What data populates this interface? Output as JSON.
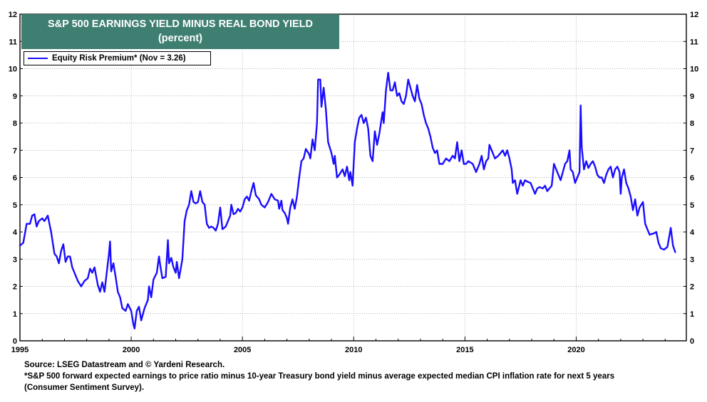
{
  "chart_data": {
    "type": "line",
    "title": "S&P 500 EARNINGS YIELD MINUS REAL BOND YIELD",
    "subtitle": "(percent)",
    "xlabel": "",
    "ylabel": "",
    "xlim": [
      1995.0,
      2024.95
    ],
    "ylim": [
      0,
      12
    ],
    "x_ticks": [
      "1995",
      "2000",
      "2005",
      "2010",
      "2015",
      "2020"
    ],
    "y_ticks": [
      "0",
      "1",
      "2",
      "3",
      "4",
      "5",
      "6",
      "7",
      "8",
      "9",
      "10",
      "11",
      "12"
    ],
    "grid": true,
    "legend_position": "top-left",
    "series": [
      {
        "name": "Equity Risk Premium* (Nov = 3.26)",
        "color": "#1a0dff",
        "points": [
          [
            1995.0,
            3.5
          ],
          [
            1995.15,
            3.6
          ],
          [
            1995.3,
            4.3
          ],
          [
            1995.45,
            4.3
          ],
          [
            1995.55,
            4.6
          ],
          [
            1995.65,
            4.65
          ],
          [
            1995.75,
            4.2
          ],
          [
            1995.85,
            4.4
          ],
          [
            1996.0,
            4.5
          ],
          [
            1996.1,
            4.4
          ],
          [
            1996.25,
            4.6
          ],
          [
            1996.4,
            4.0
          ],
          [
            1996.55,
            3.2
          ],
          [
            1996.65,
            3.1
          ],
          [
            1996.75,
            2.85
          ],
          [
            1996.85,
            3.3
          ],
          [
            1996.95,
            3.55
          ],
          [
            1997.05,
            2.9
          ],
          [
            1997.15,
            3.1
          ],
          [
            1997.25,
            3.1
          ],
          [
            1997.35,
            2.7
          ],
          [
            1997.5,
            2.4
          ],
          [
            1997.6,
            2.2
          ],
          [
            1997.75,
            2.0
          ],
          [
            1997.9,
            2.2
          ],
          [
            1998.05,
            2.3
          ],
          [
            1998.15,
            2.65
          ],
          [
            1998.25,
            2.5
          ],
          [
            1998.35,
            2.7
          ],
          [
            1998.5,
            2.05
          ],
          [
            1998.6,
            1.8
          ],
          [
            1998.7,
            2.15
          ],
          [
            1998.8,
            1.8
          ],
          [
            1998.9,
            2.5
          ],
          [
            1999.0,
            3.2
          ],
          [
            1999.05,
            3.65
          ],
          [
            1999.1,
            2.55
          ],
          [
            1999.2,
            2.85
          ],
          [
            1999.3,
            2.35
          ],
          [
            1999.4,
            1.8
          ],
          [
            1999.5,
            1.6
          ],
          [
            1999.6,
            1.2
          ],
          [
            1999.75,
            1.1
          ],
          [
            1999.85,
            1.35
          ],
          [
            2000.0,
            1.1
          ],
          [
            2000.1,
            0.6
          ],
          [
            2000.15,
            0.45
          ],
          [
            2000.25,
            1.1
          ],
          [
            2000.35,
            1.25
          ],
          [
            2000.45,
            0.75
          ],
          [
            2000.6,
            1.2
          ],
          [
            2000.75,
            1.5
          ],
          [
            2000.8,
            2.0
          ],
          [
            2000.9,
            1.6
          ],
          [
            2001.0,
            2.25
          ],
          [
            2001.15,
            2.5
          ],
          [
            2001.25,
            3.1
          ],
          [
            2001.3,
            2.8
          ],
          [
            2001.4,
            2.3
          ],
          [
            2001.55,
            2.35
          ],
          [
            2001.6,
            3.0
          ],
          [
            2001.65,
            3.7
          ],
          [
            2001.7,
            2.85
          ],
          [
            2001.8,
            3.05
          ],
          [
            2001.9,
            2.7
          ],
          [
            2002.0,
            2.5
          ],
          [
            2002.05,
            2.9
          ],
          [
            2002.15,
            2.3
          ],
          [
            2002.3,
            3.0
          ],
          [
            2002.4,
            4.4
          ],
          [
            2002.5,
            4.8
          ],
          [
            2002.6,
            5.0
          ],
          [
            2002.7,
            5.5
          ],
          [
            2002.8,
            5.1
          ],
          [
            2002.9,
            5.05
          ],
          [
            2003.0,
            5.1
          ],
          [
            2003.1,
            5.5
          ],
          [
            2003.2,
            5.1
          ],
          [
            2003.3,
            5.0
          ],
          [
            2003.4,
            4.3
          ],
          [
            2003.5,
            4.15
          ],
          [
            2003.6,
            4.2
          ],
          [
            2003.7,
            4.15
          ],
          [
            2003.8,
            4.05
          ],
          [
            2003.9,
            4.3
          ],
          [
            2004.0,
            4.9
          ],
          [
            2004.1,
            4.1
          ],
          [
            2004.25,
            4.2
          ],
          [
            2004.35,
            4.4
          ],
          [
            2004.45,
            4.6
          ],
          [
            2004.5,
            5.0
          ],
          [
            2004.6,
            4.65
          ],
          [
            2004.7,
            4.7
          ],
          [
            2004.8,
            4.85
          ],
          [
            2004.9,
            4.75
          ],
          [
            2005.0,
            4.9
          ],
          [
            2005.1,
            5.2
          ],
          [
            2005.2,
            5.3
          ],
          [
            2005.3,
            5.15
          ],
          [
            2005.4,
            5.5
          ],
          [
            2005.5,
            5.8
          ],
          [
            2005.6,
            5.35
          ],
          [
            2005.75,
            5.2
          ],
          [
            2005.85,
            5.0
          ],
          [
            2006.0,
            4.9
          ],
          [
            2006.15,
            5.1
          ],
          [
            2006.3,
            5.4
          ],
          [
            2006.45,
            5.2
          ],
          [
            2006.6,
            5.15
          ],
          [
            2006.65,
            4.85
          ],
          [
            2006.75,
            5.15
          ],
          [
            2006.8,
            4.8
          ],
          [
            2006.9,
            4.7
          ],
          [
            2007.0,
            4.5
          ],
          [
            2007.05,
            4.3
          ],
          [
            2007.15,
            4.9
          ],
          [
            2007.25,
            5.2
          ],
          [
            2007.35,
            4.85
          ],
          [
            2007.45,
            5.3
          ],
          [
            2007.55,
            6.0
          ],
          [
            2007.65,
            6.6
          ],
          [
            2007.75,
            6.7
          ],
          [
            2007.85,
            7.05
          ],
          [
            2008.0,
            6.85
          ],
          [
            2008.05,
            6.7
          ],
          [
            2008.15,
            7.4
          ],
          [
            2008.25,
            7.0
          ],
          [
            2008.35,
            8.0
          ],
          [
            2008.4,
            9.6
          ],
          [
            2008.5,
            9.6
          ],
          [
            2008.55,
            8.6
          ],
          [
            2008.65,
            9.3
          ],
          [
            2008.75,
            8.5
          ],
          [
            2008.85,
            7.3
          ],
          [
            2009.0,
            6.9
          ],
          [
            2009.1,
            6.5
          ],
          [
            2009.15,
            6.8
          ],
          [
            2009.25,
            6.0
          ],
          [
            2009.35,
            6.1
          ],
          [
            2009.5,
            6.3
          ],
          [
            2009.6,
            6.05
          ],
          [
            2009.7,
            6.4
          ],
          [
            2009.8,
            5.9
          ],
          [
            2009.85,
            6.2
          ],
          [
            2009.95,
            5.7
          ],
          [
            2010.05,
            7.3
          ],
          [
            2010.15,
            7.8
          ],
          [
            2010.25,
            8.2
          ],
          [
            2010.35,
            8.3
          ],
          [
            2010.45,
            8.0
          ],
          [
            2010.55,
            8.2
          ],
          [
            2010.65,
            7.8
          ],
          [
            2010.75,
            6.8
          ],
          [
            2010.85,
            6.6
          ],
          [
            2010.95,
            7.7
          ],
          [
            2011.05,
            7.2
          ],
          [
            2011.15,
            7.6
          ],
          [
            2011.3,
            8.4
          ],
          [
            2011.35,
            8.0
          ],
          [
            2011.45,
            9.2
          ],
          [
            2011.55,
            9.85
          ],
          [
            2011.65,
            9.2
          ],
          [
            2011.75,
            9.2
          ],
          [
            2011.85,
            9.5
          ],
          [
            2011.95,
            9.0
          ],
          [
            2012.05,
            9.1
          ],
          [
            2012.15,
            8.8
          ],
          [
            2012.25,
            8.7
          ],
          [
            2012.35,
            9.0
          ],
          [
            2012.45,
            9.6
          ],
          [
            2012.55,
            9.3
          ],
          [
            2012.65,
            9.0
          ],
          [
            2012.75,
            8.8
          ],
          [
            2012.85,
            9.4
          ],
          [
            2012.95,
            8.9
          ],
          [
            2013.05,
            8.7
          ],
          [
            2013.15,
            8.3
          ],
          [
            2013.25,
            8.0
          ],
          [
            2013.35,
            7.8
          ],
          [
            2013.45,
            7.5
          ],
          [
            2013.55,
            7.1
          ],
          [
            2013.65,
            6.9
          ],
          [
            2013.75,
            7.0
          ],
          [
            2013.85,
            6.5
          ],
          [
            2014.0,
            6.5
          ],
          [
            2014.15,
            6.7
          ],
          [
            2014.3,
            6.6
          ],
          [
            2014.45,
            6.8
          ],
          [
            2014.55,
            6.7
          ],
          [
            2014.65,
            7.3
          ],
          [
            2014.75,
            6.6
          ],
          [
            2014.85,
            7.0
          ],
          [
            2014.95,
            6.5
          ],
          [
            2015.05,
            6.5
          ],
          [
            2015.15,
            6.6
          ],
          [
            2015.35,
            6.5
          ],
          [
            2015.5,
            6.2
          ],
          [
            2015.65,
            6.5
          ],
          [
            2015.75,
            6.8
          ],
          [
            2015.85,
            6.3
          ],
          [
            2015.95,
            6.6
          ],
          [
            2016.05,
            6.7
          ],
          [
            2016.1,
            7.2
          ],
          [
            2016.25,
            6.9
          ],
          [
            2016.35,
            6.7
          ],
          [
            2016.5,
            6.8
          ],
          [
            2016.6,
            6.9
          ],
          [
            2016.7,
            7.0
          ],
          [
            2016.8,
            6.8
          ],
          [
            2016.9,
            7.0
          ],
          [
            2017.0,
            6.7
          ],
          [
            2017.1,
            6.3
          ],
          [
            2017.15,
            5.8
          ],
          [
            2017.25,
            5.9
          ],
          [
            2017.35,
            5.4
          ],
          [
            2017.5,
            5.9
          ],
          [
            2017.6,
            5.7
          ],
          [
            2017.7,
            5.9
          ],
          [
            2017.8,
            5.85
          ],
          [
            2017.95,
            5.8
          ],
          [
            2018.05,
            5.6
          ],
          [
            2018.15,
            5.4
          ],
          [
            2018.25,
            5.6
          ],
          [
            2018.35,
            5.65
          ],
          [
            2018.5,
            5.6
          ],
          [
            2018.6,
            5.7
          ],
          [
            2018.7,
            5.5
          ],
          [
            2018.8,
            5.6
          ],
          [
            2018.9,
            5.7
          ],
          [
            2019.0,
            6.5
          ],
          [
            2019.1,
            6.3
          ],
          [
            2019.2,
            6.1
          ],
          [
            2019.3,
            5.9
          ],
          [
            2019.4,
            6.2
          ],
          [
            2019.5,
            6.5
          ],
          [
            2019.6,
            6.6
          ],
          [
            2019.7,
            7.0
          ],
          [
            2019.75,
            6.3
          ],
          [
            2019.85,
            6.2
          ],
          [
            2019.95,
            5.8
          ],
          [
            2020.05,
            6.0
          ],
          [
            2020.15,
            6.2
          ],
          [
            2020.2,
            8.65
          ],
          [
            2020.25,
            7.1
          ],
          [
            2020.35,
            6.3
          ],
          [
            2020.45,
            6.6
          ],
          [
            2020.55,
            6.35
          ],
          [
            2020.65,
            6.5
          ],
          [
            2020.75,
            6.6
          ],
          [
            2020.85,
            6.4
          ],
          [
            2020.95,
            6.1
          ],
          [
            2021.05,
            6.0
          ],
          [
            2021.15,
            6.0
          ],
          [
            2021.25,
            5.8
          ],
          [
            2021.35,
            6.1
          ],
          [
            2021.45,
            6.3
          ],
          [
            2021.55,
            6.4
          ],
          [
            2021.65,
            6.0
          ],
          [
            2021.75,
            6.3
          ],
          [
            2021.85,
            6.4
          ],
          [
            2021.95,
            6.2
          ],
          [
            2022.0,
            5.4
          ],
          [
            2022.05,
            6.0
          ],
          [
            2022.15,
            6.3
          ],
          [
            2022.25,
            5.8
          ],
          [
            2022.35,
            5.6
          ],
          [
            2022.45,
            5.3
          ],
          [
            2022.55,
            4.8
          ],
          [
            2022.65,
            5.2
          ],
          [
            2022.75,
            4.6
          ],
          [
            2022.85,
            4.9
          ],
          [
            2023.0,
            5.1
          ],
          [
            2023.1,
            4.3
          ],
          [
            2023.2,
            4.1
          ],
          [
            2023.3,
            3.9
          ],
          [
            2023.5,
            3.95
          ],
          [
            2023.6,
            4.0
          ],
          [
            2023.7,
            3.6
          ],
          [
            2023.8,
            3.4
          ],
          [
            2023.95,
            3.35
          ],
          [
            2024.1,
            3.45
          ],
          [
            2024.25,
            4.15
          ],
          [
            2024.35,
            3.5
          ],
          [
            2024.45,
            3.26
          ]
        ]
      }
    ],
    "notes": [
      "Source: LSEG Datastream and © Yardeni Research.",
      "*S&P 500 forward expected earnings to price ratio minus 10-year Treasury bond yield minus average expected median CPI inflation rate for next 5 years",
      "(Consumer Sentiment Survey)."
    ]
  }
}
